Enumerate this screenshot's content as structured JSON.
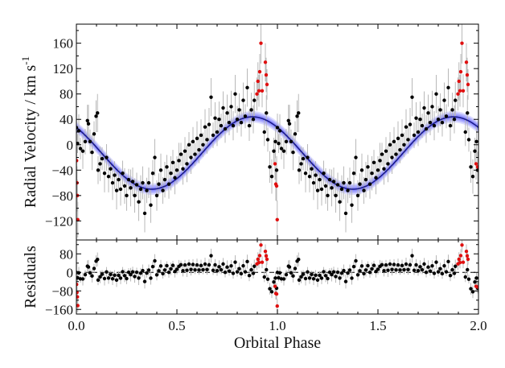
{
  "chart_data": {
    "type": "scatter",
    "x_range": [
      0.0,
      2.0
    ],
    "xlabel": "Orbital Phase",
    "x_ticks": [
      "0.0",
      "0.5",
      "1.0",
      "1.5",
      "2.0"
    ],
    "x_tick_values": [
      0.0,
      0.5,
      1.0,
      1.5,
      2.0
    ],
    "colors": {
      "data_normal": "#000000",
      "data_flagged": "#e01010",
      "model_line": "#1a1a8c",
      "model_band": "#5a5aff",
      "error_bar": "#b8b8b8",
      "zero_line": "#000000"
    },
    "top": {
      "ylabel": "Radial Velocity / km s",
      "ylabel_sup": "-1",
      "ylim": [
        -150,
        190
      ],
      "y_ticks": [
        "160",
        "120",
        "80",
        "40",
        "0",
        "−40",
        "−80",
        "−120"
      ],
      "y_tick_values": [
        160,
        120,
        80,
        40,
        0,
        -40,
        -80,
        -120
      ],
      "model": {
        "gamma": -13,
        "semi_amplitude": 57,
        "phase_of_max": 0.875,
        "band_halfwidth": 9
      }
    },
    "bottom": {
      "ylabel": "Residuals",
      "ylim": [
        -180,
        140
      ],
      "y_ticks": [
        "80",
        "0",
        "−80",
        "−160"
      ],
      "y_tick_values": [
        80,
        0,
        -80,
        -160
      ],
      "zero_line": "dashed"
    },
    "series": [
      {
        "name": "radial velocities",
        "points": [
          [
            0.0,
            27,
            22
          ],
          [
            0.006,
            2,
            15
          ],
          [
            0.012,
            22,
            26
          ],
          [
            0.02,
            -6,
            17
          ],
          [
            0.032,
            -10,
            28
          ],
          [
            0.044,
            5,
            20
          ],
          [
            0.055,
            38,
            25
          ],
          [
            0.06,
            33,
            30
          ],
          [
            0.068,
            5,
            19
          ],
          [
            0.078,
            -12,
            28
          ],
          [
            0.088,
            17,
            20
          ],
          [
            0.098,
            45,
            25
          ],
          [
            0.105,
            50,
            30
          ],
          [
            0.108,
            -40,
            22
          ],
          [
            0.118,
            -30,
            27
          ],
          [
            0.128,
            -22,
            18
          ],
          [
            0.14,
            -45,
            30
          ],
          [
            0.15,
            -20,
            21
          ],
          [
            0.16,
            -50,
            25
          ],
          [
            0.17,
            -38,
            16
          ],
          [
            0.18,
            -60,
            27
          ],
          [
            0.19,
            -48,
            22
          ],
          [
            0.2,
            -72,
            30
          ],
          [
            0.21,
            -55,
            18
          ],
          [
            0.22,
            -70,
            26
          ],
          [
            0.23,
            -45,
            20
          ],
          [
            0.24,
            -65,
            28
          ],
          [
            0.25,
            -80,
            24
          ],
          [
            0.26,
            -55,
            17
          ],
          [
            0.27,
            -68,
            29
          ],
          [
            0.28,
            -58,
            22
          ],
          [
            0.29,
            -80,
            27
          ],
          [
            0.3,
            -63,
            19
          ],
          [
            0.31,
            -90,
            30
          ],
          [
            0.32,
            -70,
            22
          ],
          [
            0.33,
            -60,
            26
          ],
          [
            0.34,
            -108,
            30
          ],
          [
            0.35,
            -72,
            20
          ],
          [
            0.36,
            -60,
            24
          ],
          [
            0.37,
            -95,
            28
          ],
          [
            0.38,
            -45,
            21
          ],
          [
            0.39,
            -20,
            29
          ],
          [
            0.4,
            -80,
            24
          ],
          [
            0.41,
            -62,
            17
          ],
          [
            0.42,
            -40,
            26
          ],
          [
            0.43,
            -72,
            21
          ],
          [
            0.44,
            -55,
            28
          ],
          [
            0.45,
            -35,
            19
          ],
          [
            0.46,
            -62,
            23
          ],
          [
            0.47,
            -45,
            27
          ],
          [
            0.48,
            -28,
            20
          ],
          [
            0.49,
            -52,
            26
          ],
          [
            0.5,
            -40,
            22
          ],
          [
            0.51,
            -25,
            28
          ],
          [
            0.52,
            -15,
            18
          ],
          [
            0.53,
            -38,
            25
          ],
          [
            0.54,
            -10,
            22
          ],
          [
            0.55,
            -30,
            29
          ],
          [
            0.56,
            0,
            20
          ],
          [
            0.57,
            -20,
            26
          ],
          [
            0.58,
            5,
            23
          ],
          [
            0.59,
            -15,
            18
          ],
          [
            0.6,
            10,
            27
          ],
          [
            0.61,
            -8,
            21
          ],
          [
            0.62,
            15,
            25
          ],
          [
            0.63,
            0,
            19
          ],
          [
            0.64,
            28,
            28
          ],
          [
            0.65,
            8,
            22
          ],
          [
            0.66,
            32,
            26
          ],
          [
            0.67,
            75,
            30
          ],
          [
            0.68,
            15,
            20
          ],
          [
            0.69,
            42,
            25
          ],
          [
            0.7,
            20,
            22
          ],
          [
            0.71,
            40,
            28
          ],
          [
            0.72,
            30,
            19
          ],
          [
            0.73,
            58,
            26
          ],
          [
            0.74,
            25,
            22
          ],
          [
            0.75,
            50,
            29
          ],
          [
            0.76,
            35,
            20
          ],
          [
            0.77,
            60,
            25
          ],
          [
            0.78,
            30,
            23
          ],
          [
            0.79,
            80,
            30
          ],
          [
            0.8,
            40,
            21
          ],
          [
            0.81,
            55,
            26
          ],
          [
            0.82,
            35,
            22
          ],
          [
            0.83,
            70,
            28
          ],
          [
            0.84,
            45,
            19
          ],
          [
            0.85,
            90,
            30
          ],
          [
            0.86,
            30,
            24
          ],
          [
            0.87,
            55,
            27
          ],
          [
            0.88,
            40,
            22
          ],
          [
            0.885,
            70,
            29
          ],
          [
            0.935,
            20,
            22
          ],
          [
            0.945,
            50,
            28
          ],
          [
            0.952,
            8,
            19
          ],
          [
            0.962,
            -35,
            25
          ],
          [
            0.972,
            -50,
            27
          ],
          [
            0.982,
            -10,
            21
          ],
          [
            0.99,
            5,
            26
          ],
          [
            0.996,
            -40,
            22
          ],
          [
            1.0,
            27,
            22
          ],
          [
            1.006,
            2,
            15
          ],
          [
            1.012,
            22,
            26
          ],
          [
            1.02,
            -6,
            17
          ],
          [
            1.032,
            -10,
            28
          ],
          [
            1.044,
            5,
            20
          ],
          [
            1.055,
            38,
            25
          ],
          [
            1.06,
            33,
            30
          ],
          [
            1.068,
            5,
            19
          ],
          [
            1.078,
            -12,
            28
          ],
          [
            1.088,
            17,
            20
          ],
          [
            1.098,
            45,
            25
          ],
          [
            1.105,
            50,
            30
          ],
          [
            1.108,
            -40,
            22
          ],
          [
            1.118,
            -30,
            27
          ],
          [
            1.128,
            -22,
            18
          ],
          [
            1.14,
            -45,
            30
          ],
          [
            1.15,
            -20,
            21
          ],
          [
            1.16,
            -50,
            25
          ],
          [
            1.17,
            -38,
            16
          ],
          [
            1.18,
            -60,
            27
          ],
          [
            1.19,
            -48,
            22
          ],
          [
            1.2,
            -72,
            30
          ],
          [
            1.21,
            -55,
            18
          ],
          [
            1.22,
            -70,
            26
          ],
          [
            1.23,
            -45,
            20
          ],
          [
            1.24,
            -65,
            28
          ],
          [
            1.25,
            -80,
            24
          ],
          [
            1.26,
            -55,
            17
          ],
          [
            1.27,
            -68,
            29
          ],
          [
            1.28,
            -58,
            22
          ],
          [
            1.29,
            -80,
            27
          ],
          [
            1.3,
            -63,
            19
          ],
          [
            1.31,
            -90,
            30
          ],
          [
            1.32,
            -70,
            22
          ],
          [
            1.33,
            -60,
            26
          ],
          [
            1.34,
            -108,
            30
          ],
          [
            1.35,
            -72,
            20
          ],
          [
            1.36,
            -60,
            24
          ],
          [
            1.37,
            -95,
            28
          ],
          [
            1.38,
            -45,
            21
          ],
          [
            1.39,
            -20,
            29
          ],
          [
            1.4,
            -80,
            24
          ],
          [
            1.41,
            -62,
            17
          ],
          [
            1.42,
            -40,
            26
          ],
          [
            1.43,
            -72,
            21
          ],
          [
            1.44,
            -55,
            28
          ],
          [
            1.45,
            -35,
            19
          ],
          [
            1.46,
            -62,
            23
          ],
          [
            1.47,
            -45,
            27
          ],
          [
            1.48,
            -28,
            20
          ],
          [
            1.49,
            -52,
            26
          ],
          [
            1.5,
            -40,
            22
          ],
          [
            1.51,
            -25,
            28
          ],
          [
            1.52,
            -15,
            18
          ],
          [
            1.53,
            -38,
            25
          ],
          [
            1.54,
            -10,
            22
          ],
          [
            1.55,
            -30,
            29
          ],
          [
            1.56,
            0,
            20
          ],
          [
            1.57,
            -20,
            26
          ],
          [
            1.58,
            5,
            23
          ],
          [
            1.59,
            -15,
            18
          ],
          [
            1.6,
            10,
            27
          ],
          [
            1.61,
            -8,
            21
          ],
          [
            1.62,
            15,
            25
          ],
          [
            1.63,
            0,
            19
          ],
          [
            1.64,
            28,
            28
          ],
          [
            1.65,
            8,
            22
          ],
          [
            1.66,
            32,
            26
          ],
          [
            1.67,
            75,
            30
          ],
          [
            1.68,
            15,
            20
          ],
          [
            1.69,
            42,
            25
          ],
          [
            1.7,
            20,
            22
          ],
          [
            1.71,
            40,
            28
          ],
          [
            1.72,
            30,
            19
          ],
          [
            1.73,
            58,
            26
          ],
          [
            1.74,
            25,
            22
          ],
          [
            1.75,
            50,
            29
          ],
          [
            1.76,
            35,
            20
          ],
          [
            1.77,
            60,
            25
          ],
          [
            1.78,
            30,
            23
          ],
          [
            1.79,
            80,
            30
          ],
          [
            1.8,
            40,
            21
          ],
          [
            1.81,
            55,
            26
          ],
          [
            1.82,
            35,
            22
          ],
          [
            1.83,
            70,
            28
          ],
          [
            1.84,
            45,
            19
          ],
          [
            1.85,
            90,
            30
          ],
          [
            1.86,
            30,
            24
          ],
          [
            1.87,
            55,
            27
          ],
          [
            1.88,
            40,
            22
          ],
          [
            1.885,
            70,
            29
          ],
          [
            1.935,
            20,
            22
          ],
          [
            1.945,
            50,
            28
          ],
          [
            1.952,
            8,
            19
          ],
          [
            1.962,
            -35,
            25
          ],
          [
            1.972,
            -50,
            27
          ],
          [
            1.982,
            -10,
            21
          ],
          [
            1.99,
            5,
            26
          ],
          [
            1.996,
            -40,
            22
          ]
        ]
      },
      {
        "name": "flagged velocities (red)",
        "points": [
          [
            0.001,
            -25,
            22
          ],
          [
            0.003,
            -60,
            26
          ],
          [
            0.005,
            -80,
            25
          ],
          [
            0.007,
            -118,
            28
          ],
          [
            0.898,
            80,
            26
          ],
          [
            0.903,
            100,
            30
          ],
          [
            0.908,
            85,
            25
          ],
          [
            0.912,
            115,
            28
          ],
          [
            0.918,
            160,
            32
          ],
          [
            0.924,
            85,
            26
          ],
          [
            0.94,
            130,
            30
          ],
          [
            0.944,
            110,
            27
          ],
          [
            0.948,
            95,
            24
          ],
          [
            0.988,
            -30,
            25
          ],
          [
            0.992,
            -62,
            26
          ],
          [
            0.996,
            -65,
            24
          ],
          [
            0.999,
            -118,
            30
          ],
          [
            1.898,
            80,
            26
          ],
          [
            1.903,
            100,
            30
          ],
          [
            1.908,
            85,
            25
          ],
          [
            1.912,
            115,
            28
          ],
          [
            1.918,
            160,
            32
          ],
          [
            1.924,
            85,
            26
          ],
          [
            1.94,
            130,
            30
          ],
          [
            1.944,
            110,
            27
          ],
          [
            1.948,
            95,
            24
          ],
          [
            1.988,
            -30,
            25
          ],
          [
            1.996,
            -35,
            24
          ]
        ]
      }
    ]
  }
}
